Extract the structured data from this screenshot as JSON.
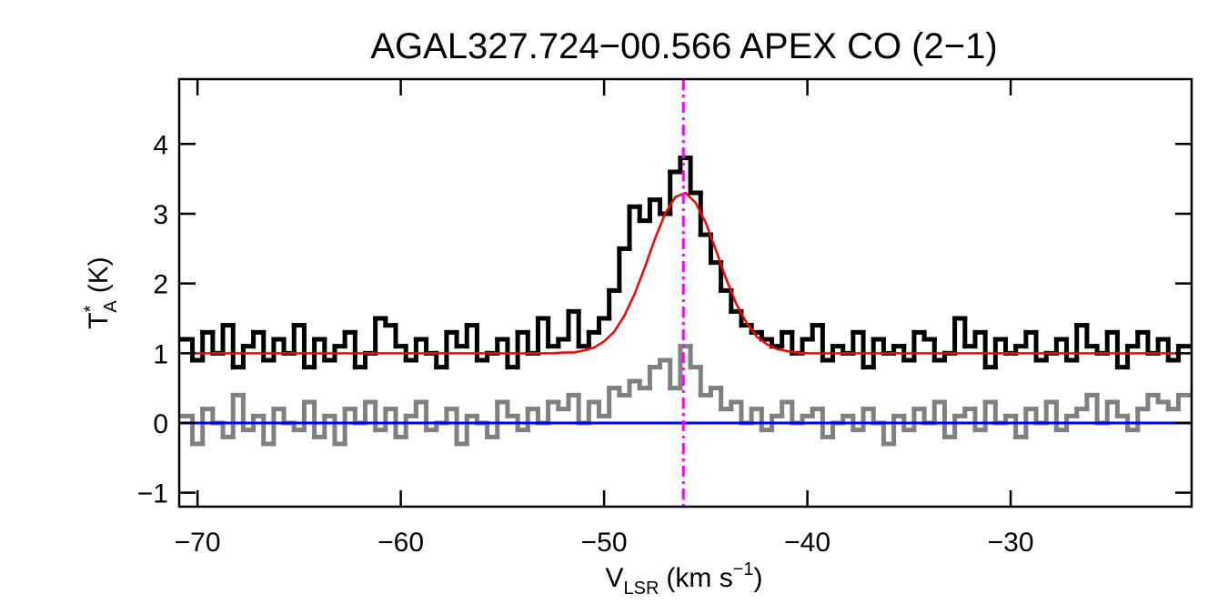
{
  "chart_data": {
    "type": "spectrum",
    "title": "AGAL327.724−00.566  APEX CO (2−1)",
    "xlabel": {
      "text": "V",
      "sub": "LSR",
      "unit": "(km s",
      "sup": "−1",
      "close": ")"
    },
    "ylabel": {
      "text": "T",
      "sup": "*",
      "sub": "A",
      "unit": "(K)"
    },
    "xlim": [
      -70.9,
      -21.1
    ],
    "ylim": [
      -1.2,
      4.93
    ],
    "xticks": [
      {
        "value": -70,
        "label": "−70"
      },
      {
        "value": -60,
        "label": "−60"
      },
      {
        "value": -50,
        "label": "−50"
      },
      {
        "value": -40,
        "label": "−40"
      },
      {
        "value": -30,
        "label": "−30"
      }
    ],
    "yticks": [
      {
        "value": -1,
        "label": "−1"
      },
      0,
      1,
      2,
      3,
      4
    ],
    "x": [
      -70.5,
      -70,
      -69.5,
      -69,
      -68.5,
      -68,
      -67.5,
      -67,
      -66.5,
      -66,
      -65.5,
      -65,
      -64.5,
      -64,
      -63.5,
      -63,
      -62.5,
      -62,
      -61.5,
      -61,
      -60.5,
      -60,
      -59.5,
      -59,
      -58.5,
      -58,
      -57.5,
      -57,
      -56.5,
      -56,
      -55.5,
      -55,
      -54.5,
      -54,
      -53.5,
      -53,
      -52.5,
      -52,
      -51.5,
      -51,
      -50.5,
      -50,
      -49.5,
      -49,
      -48.5,
      -48,
      -47.5,
      -47,
      -46.5,
      -46,
      -45.5,
      -45,
      -44.5,
      -44,
      -43.5,
      -43,
      -42.5,
      -42,
      -41.5,
      -41,
      -40.5,
      -40,
      -39.5,
      -39,
      -38.5,
      -38,
      -37.5,
      -37,
      -36.5,
      -36,
      -35.5,
      -35,
      -34.5,
      -34,
      -33.5,
      -33,
      -32.5,
      -32,
      -31.5,
      -31,
      -30.5,
      -30,
      -29.5,
      -29,
      -28.5,
      -28,
      -27.5,
      -27,
      -26.5,
      -26,
      -25.5,
      -25,
      -24.5,
      -24,
      -23.5,
      -23,
      -22.5,
      -22,
      -21.5
    ],
    "series": [
      {
        "color": "#000000",
        "style": "step",
        "values": [
          1.2,
          0.9,
          1.3,
          1.0,
          1.4,
          0.8,
          1.1,
          1.3,
          0.9,
          1.2,
          1.0,
          1.4,
          0.8,
          1.2,
          0.9,
          1.1,
          1.3,
          0.8,
          1.0,
          1.5,
          1.4,
          1.1,
          0.9,
          1.2,
          1.0,
          0.8,
          1.3,
          1.1,
          1.4,
          0.9,
          1.0,
          1.2,
          0.8,
          1.3,
          1.0,
          1.5,
          1.1,
          1.2,
          1.6,
          1.1,
          1.3,
          1.5,
          1.9,
          2.5,
          3.1,
          2.9,
          3.2,
          3.0,
          3.6,
          3.8,
          3.3,
          2.7,
          2.3,
          1.9,
          1.6,
          1.4,
          1.3,
          1.2,
          1.1,
          1.3,
          1.0,
          1.2,
          1.4,
          0.9,
          1.1,
          1.0,
          1.3,
          0.8,
          1.2,
          1.0,
          1.1,
          0.9,
          1.3,
          1.2,
          0.9,
          1.0,
          1.5,
          1.1,
          1.3,
          0.8,
          1.2,
          1.0,
          1.1,
          1.3,
          0.9,
          1.0,
          1.2,
          0.9,
          1.4,
          1.1,
          1.0,
          1.3,
          0.8,
          1.1,
          1.3,
          1.0,
          1.2,
          0.9,
          1.1
        ]
      },
      {
        "color": "#808080",
        "style": "step",
        "values": [
          0.1,
          -0.3,
          0.2,
          0.0,
          -0.2,
          0.4,
          -0.1,
          0.1,
          -0.3,
          0.2,
          0.0,
          -0.1,
          0.3,
          -0.2,
          0.1,
          -0.3,
          0.2,
          0.0,
          0.3,
          -0.1,
          0.2,
          -0.2,
          0.1,
          0.3,
          -0.1,
          0.0,
          0.2,
          -0.3,
          0.1,
          0.0,
          -0.2,
          0.3,
          0.1,
          -0.1,
          0.2,
          0.0,
          0.3,
          0.2,
          0.4,
          0.0,
          0.3,
          0.1,
          0.5,
          0.4,
          0.6,
          0.5,
          0.8,
          0.9,
          0.5,
          1.1,
          0.8,
          0.4,
          0.5,
          0.2,
          0.3,
          0.0,
          0.2,
          -0.1,
          0.1,
          0.3,
          0.0,
          0.1,
          0.2,
          -0.2,
          0.0,
          0.1,
          -0.1,
          0.2,
          0.0,
          -0.3,
          0.1,
          -0.1,
          0.2,
          0.0,
          0.3,
          -0.2,
          0.1,
          0.2,
          -0.1,
          0.3,
          0.0,
          0.1,
          -0.2,
          0.2,
          0.0,
          0.3,
          -0.1,
          0.1,
          0.2,
          0.4,
          0.0,
          0.3,
          0.1,
          -0.1,
          0.2,
          0.4,
          0.3,
          0.2,
          0.4
        ]
      },
      {
        "color": "#ff0000",
        "style": "line",
        "values": [
          1,
          1,
          1,
          1,
          1,
          1,
          1,
          1,
          1,
          1,
          1,
          1,
          1,
          1,
          1,
          1,
          1,
          1,
          1,
          1,
          1,
          1,
          1,
          1,
          1,
          1,
          1,
          1,
          1,
          1,
          1,
          1,
          1,
          1,
          1,
          1,
          1,
          1.01,
          1.01,
          1.04,
          1.08,
          1.17,
          1.31,
          1.54,
          1.85,
          2.23,
          2.64,
          3.0,
          3.24,
          3.3,
          3.16,
          2.87,
          2.48,
          2.07,
          1.71,
          1.44,
          1.24,
          1.13,
          1.06,
          1.03,
          1.01,
          1,
          1,
          1,
          1,
          1,
          1,
          1,
          1,
          1,
          1,
          1,
          1,
          1,
          1,
          1,
          1,
          1,
          1,
          1,
          1,
          1,
          1,
          1,
          1,
          1,
          1,
          1,
          1,
          1,
          1,
          1,
          1,
          1,
          1,
          1,
          1,
          1,
          1
        ]
      }
    ],
    "reference_lines": [
      {
        "axis": "y",
        "value": 0,
        "color": "#0000ff",
        "style": "solid"
      },
      {
        "axis": "x",
        "value": -46.1,
        "color": "#ff00ff",
        "style": "dashdot"
      }
    ]
  }
}
